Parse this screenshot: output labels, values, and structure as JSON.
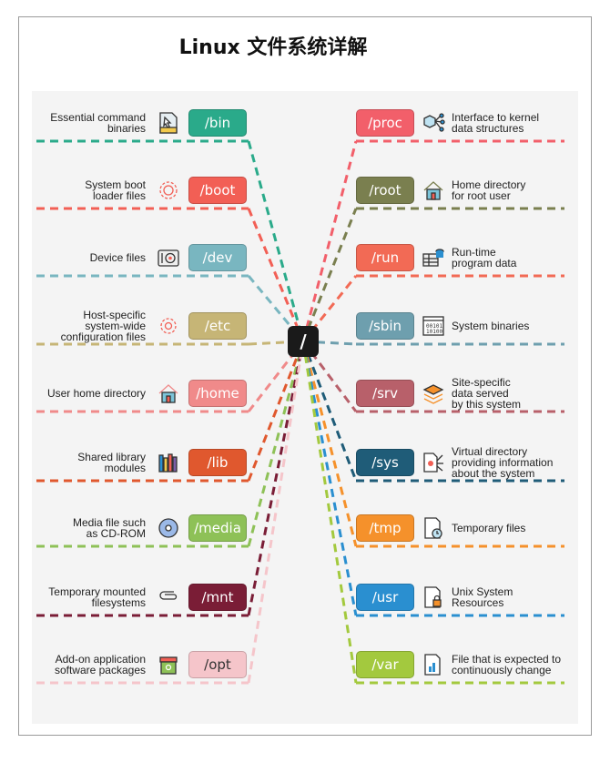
{
  "title": "Linux 文件系统详解",
  "root": "/",
  "left": [
    {
      "dir": "/bin",
      "desc": "Essential command\nbinaries",
      "color": "#2aaa8a",
      "icon": "exe-file-icon"
    },
    {
      "dir": "/boot",
      "desc": "System boot\nloader files",
      "color": "#f25f55",
      "icon": "boot-gear-icon"
    },
    {
      "dir": "/dev",
      "desc": "Device files",
      "color": "#79b6c0",
      "icon": "safe-icon"
    },
    {
      "dir": "/etc",
      "desc": "Host-specific\nsystem-wide\nconfiguration files",
      "color": "#c6b576",
      "icon": "config-gear-icon"
    },
    {
      "dir": "/home",
      "desc": "User home directory",
      "color": "#f08a8a",
      "icon": "house-icon"
    },
    {
      "dir": "/lib",
      "desc": "Shared library\nmodules",
      "color": "#e0582e",
      "icon": "books-icon"
    },
    {
      "dir": "/media",
      "desc": "Media file such\nas CD-ROM",
      "color": "#8ec157",
      "icon": "cd-icon"
    },
    {
      "dir": "/mnt",
      "desc": "Temporary mounted\nfilesystems",
      "color": "#7a1d36",
      "icon": "paperclip-icon"
    },
    {
      "dir": "/opt",
      "desc": "Add-on application\nsoftware packages",
      "color": "#f5c5ca",
      "icon": "package-icon"
    }
  ],
  "right": [
    {
      "dir": "/proc",
      "desc": "Interface to kernel\ndata structures",
      "color": "#f25f6a",
      "icon": "cube-network-icon"
    },
    {
      "dir": "/root",
      "desc": "Home directory\nfor root user",
      "color": "#7a7f4f",
      "icon": "house-icon"
    },
    {
      "dir": "/run",
      "desc": "Run-time\nprogram data",
      "color": "#f26a55",
      "icon": "table-database-icon"
    },
    {
      "dir": "/sbin",
      "desc": "System binaries",
      "color": "#6e9fae",
      "icon": "binary-window-icon"
    },
    {
      "dir": "/srv",
      "desc": "Site-specific\ndata served\nby this system",
      "color": "#b8606a",
      "icon": "layers-icon"
    },
    {
      "dir": "/sys",
      "desc": "Virtual directory\nproviding information\nabout the system",
      "color": "#1f5c78",
      "icon": "file-network-icon"
    },
    {
      "dir": "/tmp",
      "desc": "Temporary files",
      "color": "#f5912b",
      "icon": "file-clock-icon"
    },
    {
      "dir": "/usr",
      "desc": "Unix System\nResources",
      "color": "#2a8fd0",
      "icon": "file-lock-icon"
    },
    {
      "dir": "/var",
      "desc": "File that is expected to\ncontinuously change",
      "color": "#a3c93e",
      "icon": "file-chart-icon"
    }
  ]
}
